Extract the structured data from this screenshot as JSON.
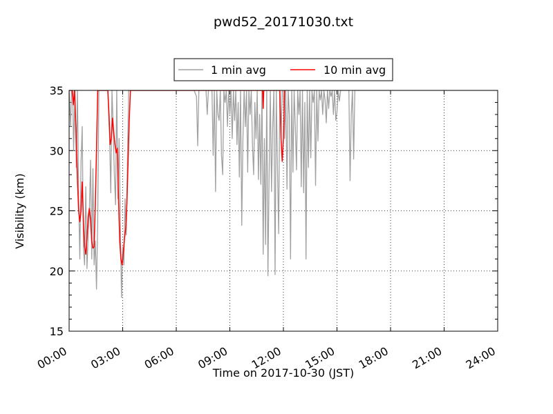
{
  "chart_data": {
    "type": "line",
    "title": "pwd52_20171030.txt",
    "xlabel": "Time on 2017-10-30 (JST)",
    "ylabel": "Visibility (km)",
    "xlim": [
      "00:00",
      "24:00"
    ],
    "ylim": [
      15,
      35
    ],
    "x_ticks": [
      "00:00",
      "03:00",
      "06:00",
      "09:00",
      "12:00",
      "15:00",
      "18:00",
      "21:00",
      "24:00"
    ],
    "y_ticks": [
      "15",
      "20",
      "25",
      "30",
      "35"
    ],
    "grid": true,
    "legend_position": "top-center",
    "legend": [
      "1 min avg",
      "10 min avg"
    ],
    "series": [
      {
        "name": "1 min avg",
        "color": "#a0a0a0",
        "points": [
          [
            "00:00",
            35
          ],
          [
            "00:05",
            32
          ],
          [
            "00:08",
            35
          ],
          [
            "00:12",
            35
          ],
          [
            "00:15",
            30
          ],
          [
            "00:20",
            35
          ],
          [
            "00:24",
            28.6
          ],
          [
            "00:28",
            35
          ],
          [
            "00:32",
            26
          ],
          [
            "00:36",
            21
          ],
          [
            "00:40",
            29
          ],
          [
            "00:44",
            32
          ],
          [
            "00:48",
            22
          ],
          [
            "00:52",
            20.5
          ],
          [
            "00:56",
            27
          ],
          [
            "01:00",
            20.2
          ],
          [
            "01:04",
            23
          ],
          [
            "01:08",
            25
          ],
          [
            "01:12",
            29.2
          ],
          [
            "01:16",
            21
          ],
          [
            "01:20",
            28.5
          ],
          [
            "01:24",
            20.5
          ],
          [
            "01:28",
            22.5
          ],
          [
            "01:32",
            18.5
          ],
          [
            "01:36",
            24
          ],
          [
            "01:40",
            35
          ],
          [
            "01:44",
            35
          ],
          [
            "01:48",
            35
          ],
          [
            "02:00",
            35
          ],
          [
            "02:10",
            35
          ],
          [
            "02:16",
            31
          ],
          [
            "02:20",
            26.5
          ],
          [
            "02:24",
            35
          ],
          [
            "02:28",
            32
          ],
          [
            "02:32",
            28
          ],
          [
            "02:36",
            25.5
          ],
          [
            "02:40",
            35
          ],
          [
            "02:44",
            26
          ],
          [
            "02:48",
            31
          ],
          [
            "02:52",
            24
          ],
          [
            "02:56",
            17.8
          ],
          [
            "03:00",
            22
          ],
          [
            "03:04",
            20.5
          ],
          [
            "03:08",
            26
          ],
          [
            "03:12",
            23
          ],
          [
            "03:16",
            29.3
          ],
          [
            "03:20",
            35
          ],
          [
            "03:24",
            35
          ],
          [
            "03:40",
            35
          ],
          [
            "04:00",
            35
          ],
          [
            "05:00",
            35
          ],
          [
            "06:00",
            35
          ],
          [
            "07:00",
            35
          ],
          [
            "07:08",
            34.5
          ],
          [
            "07:12",
            30.4
          ],
          [
            "07:16",
            35
          ],
          [
            "07:40",
            35
          ],
          [
            "07:44",
            33
          ],
          [
            "07:48",
            35
          ],
          [
            "08:00",
            35
          ],
          [
            "08:04",
            29.6
          ],
          [
            "08:08",
            35
          ],
          [
            "08:12",
            26.6
          ],
          [
            "08:16",
            35
          ],
          [
            "08:20",
            33
          ],
          [
            "08:24",
            32.5
          ],
          [
            "08:28",
            35
          ],
          [
            "08:32",
            29.6
          ],
          [
            "08:36",
            28
          ],
          [
            "08:40",
            35
          ],
          [
            "08:44",
            34
          ],
          [
            "08:48",
            35
          ],
          [
            "08:52",
            32
          ],
          [
            "08:56",
            35
          ],
          [
            "09:00",
            33
          ],
          [
            "09:04",
            35
          ],
          [
            "09:08",
            31
          ],
          [
            "09:12",
            35
          ],
          [
            "09:16",
            32.5
          ],
          [
            "09:20",
            35
          ],
          [
            "09:24",
            30.5
          ],
          [
            "09:28",
            34
          ],
          [
            "09:32",
            27.8
          ],
          [
            "09:36",
            35
          ],
          [
            "09:40",
            23.8
          ],
          [
            "09:44",
            31
          ],
          [
            "09:48",
            35
          ],
          [
            "09:52",
            32
          ],
          [
            "09:56",
            35
          ],
          [
            "10:00",
            28.2
          ],
          [
            "10:04",
            35
          ],
          [
            "10:08",
            33
          ],
          [
            "10:12",
            35
          ],
          [
            "10:16",
            30.5
          ],
          [
            "10:20",
            28
          ],
          [
            "10:24",
            34
          ],
          [
            "10:28",
            31
          ],
          [
            "10:32",
            35
          ],
          [
            "10:36",
            27.6
          ],
          [
            "10:40",
            33
          ],
          [
            "10:44",
            27.2
          ],
          [
            "10:48",
            35
          ],
          [
            "10:52",
            21.4
          ],
          [
            "10:56",
            31
          ],
          [
            "11:00",
            22.2
          ],
          [
            "11:04",
            35
          ],
          [
            "11:08",
            19.6
          ],
          [
            "11:12",
            28
          ],
          [
            "11:16",
            35
          ],
          [
            "11:20",
            26.6
          ],
          [
            "11:24",
            32
          ],
          [
            "11:28",
            35
          ],
          [
            "11:32",
            19.7
          ],
          [
            "11:36",
            35
          ],
          [
            "11:40",
            28.6
          ],
          [
            "11:44",
            23.1
          ],
          [
            "11:48",
            35
          ],
          [
            "11:52",
            31
          ],
          [
            "11:56",
            35
          ],
          [
            "12:00",
            35
          ],
          [
            "12:04",
            31
          ],
          [
            "12:08",
            35
          ],
          [
            "12:12",
            26.8
          ],
          [
            "12:16",
            35
          ],
          [
            "12:20",
            33
          ],
          [
            "12:24",
            21
          ],
          [
            "12:28",
            35
          ],
          [
            "12:32",
            28.2
          ],
          [
            "12:36",
            35
          ],
          [
            "12:40",
            32
          ],
          [
            "12:44",
            28.4
          ],
          [
            "12:48",
            35
          ],
          [
            "12:52",
            33
          ],
          [
            "12:56",
            35
          ],
          [
            "13:00",
            27
          ],
          [
            "13:04",
            35
          ],
          [
            "13:08",
            26.5
          ],
          [
            "13:12",
            34
          ],
          [
            "13:16",
            21
          ],
          [
            "13:20",
            35
          ],
          [
            "13:24",
            28.6
          ],
          [
            "13:28",
            35
          ],
          [
            "13:32",
            29.4
          ],
          [
            "13:36",
            35
          ],
          [
            "13:40",
            34
          ],
          [
            "13:44",
            35
          ],
          [
            "13:48",
            27.1
          ],
          [
            "13:52",
            35
          ],
          [
            "13:56",
            30.8
          ],
          [
            "14:00",
            35
          ],
          [
            "14:04",
            34.2
          ],
          [
            "14:08",
            35
          ],
          [
            "14:12",
            33
          ],
          [
            "14:16",
            35
          ],
          [
            "14:20",
            34.2
          ],
          [
            "14:24",
            32.3
          ],
          [
            "14:28",
            35
          ],
          [
            "14:32",
            33.5
          ],
          [
            "14:36",
            35
          ],
          [
            "14:40",
            34.5
          ],
          [
            "14:44",
            35
          ],
          [
            "14:48",
            33
          ],
          [
            "14:52",
            35
          ],
          [
            "14:56",
            32.5
          ],
          [
            "15:00",
            33.2
          ],
          [
            "15:04",
            35
          ],
          [
            "15:08",
            34.1
          ],
          [
            "15:12",
            35
          ],
          [
            "15:40",
            35
          ],
          [
            "15:44",
            27.5
          ],
          [
            "15:48",
            33
          ],
          [
            "15:52",
            35
          ],
          [
            "15:56",
            29.3
          ],
          [
            "16:00",
            35
          ],
          [
            "17:00",
            35
          ],
          [
            "18:00",
            35
          ],
          [
            "19:00",
            35
          ],
          [
            "20:00",
            35
          ],
          [
            "21:00",
            35
          ],
          [
            "22:00",
            35
          ],
          [
            "23:00",
            35
          ],
          [
            "24:00",
            35
          ]
        ]
      },
      {
        "name": "10 min avg",
        "color": "#ff0000",
        "points": [
          [
            "00:00",
            35
          ],
          [
            "00:10",
            35
          ],
          [
            "00:14",
            33.8
          ],
          [
            "00:18",
            35
          ],
          [
            "00:24",
            31
          ],
          [
            "00:28",
            27.5
          ],
          [
            "00:32",
            25
          ],
          [
            "00:36",
            24.1
          ],
          [
            "00:40",
            25
          ],
          [
            "00:44",
            27.4
          ],
          [
            "00:48",
            24.1
          ],
          [
            "00:52",
            22
          ],
          [
            "00:56",
            21.4
          ],
          [
            "01:00",
            22.8
          ],
          [
            "01:04",
            24.5
          ],
          [
            "01:08",
            25.2
          ],
          [
            "01:12",
            24.2
          ],
          [
            "01:16",
            22.5
          ],
          [
            "01:20",
            21.9
          ],
          [
            "01:24",
            22
          ],
          [
            "01:28",
            25.5
          ],
          [
            "01:32",
            30
          ],
          [
            "01:36",
            35
          ],
          [
            "02:10",
            35
          ],
          [
            "02:14",
            33
          ],
          [
            "02:18",
            30.5
          ],
          [
            "02:22",
            31
          ],
          [
            "02:26",
            32.7
          ],
          [
            "02:30",
            31.5
          ],
          [
            "02:34",
            30.5
          ],
          [
            "02:38",
            29.8
          ],
          [
            "02:42",
            30.2
          ],
          [
            "02:46",
            26
          ],
          [
            "02:50",
            22.5
          ],
          [
            "02:54",
            21
          ],
          [
            "02:58",
            20.5
          ],
          [
            "03:02",
            21.5
          ],
          [
            "03:06",
            22.7
          ],
          [
            "03:10",
            23.5
          ],
          [
            "03:14",
            25.5
          ],
          [
            "03:18",
            29
          ],
          [
            "03:22",
            32.5
          ],
          [
            "03:26",
            35
          ],
          [
            "10:50",
            35
          ],
          [
            "10:52",
            33.5
          ],
          [
            "10:54",
            35
          ],
          [
            "11:48",
            35
          ],
          [
            "11:52",
            31
          ],
          [
            "11:56",
            29.1
          ],
          [
            "12:00",
            31
          ],
          [
            "12:04",
            35
          ]
        ]
      }
    ]
  }
}
